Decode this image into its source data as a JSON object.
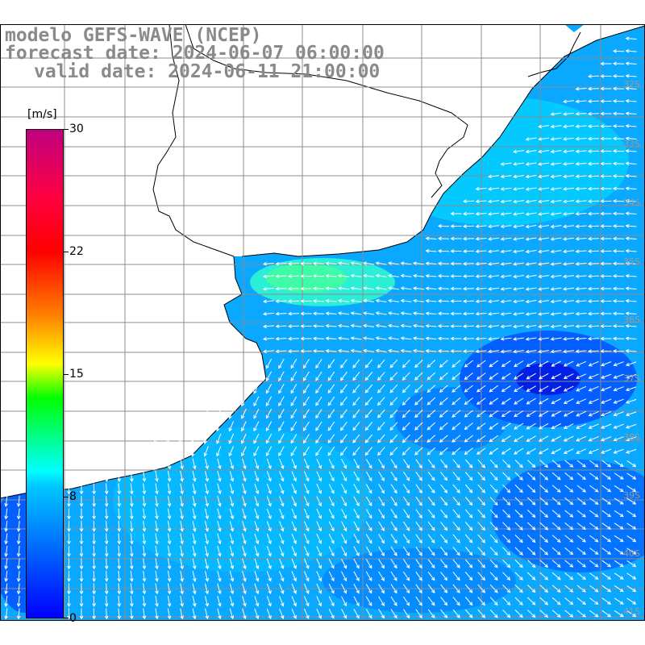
{
  "title": {
    "line1": "modelo GEFS-WAVE (NCEP)",
    "line2": "forecast date: 2024-06-07 06:00:00",
    "line3": "valid date: 2024-06-11 21:00:00"
  },
  "colorbar": {
    "units": "[m/s]",
    "ticks": [
      "30",
      "22",
      "15",
      "8",
      "0"
    ],
    "colors": [
      "#0000ff",
      "#00c8ff",
      "#00ffff",
      "#00ff00",
      "#ffff00",
      "#ff8000",
      "#ff0000",
      "#c00080"
    ]
  },
  "map": {
    "ocean_color": "#00b4ff",
    "land_color": "#ffffff",
    "grid_color": "#8c8c8c",
    "lat_labels": [
      "32S",
      "33S",
      "34S",
      "35S",
      "36S",
      "37S",
      "38S",
      "39S",
      "40S",
      "41S"
    ]
  }
}
